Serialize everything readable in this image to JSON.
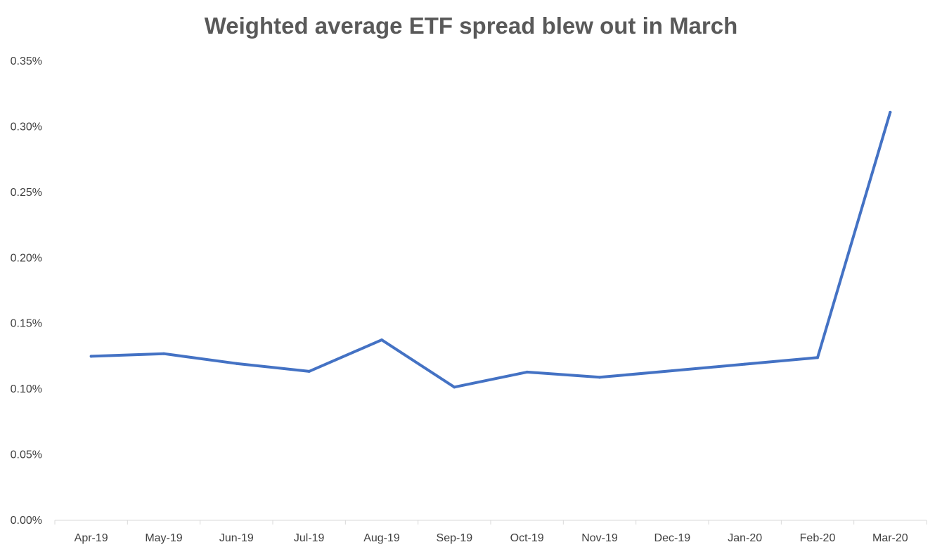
{
  "chart_data": {
    "type": "line",
    "title": "Weighted average ETF spread blew out in March",
    "xlabel": "",
    "ylabel": "",
    "categories": [
      "Apr-19",
      "May-19",
      "Jun-19",
      "Jul-19",
      "Aug-19",
      "Sep-19",
      "Oct-19",
      "Nov-19",
      "Dec-19",
      "Jan-20",
      "Feb-20",
      "Mar-20"
    ],
    "series": [
      {
        "values": [
          0.125,
          0.127,
          0.1195,
          0.1135,
          0.1375,
          0.1015,
          0.113,
          0.109,
          0.114,
          0.119,
          0.124,
          0.311
        ]
      }
    ],
    "y_ticks": [
      "0.00%",
      "0.05%",
      "0.10%",
      "0.15%",
      "0.20%",
      "0.25%",
      "0.30%",
      "0.35%"
    ],
    "ylim": [
      0,
      0.35
    ],
    "grid": false,
    "legend": "none",
    "line_color": "#4472C4"
  }
}
